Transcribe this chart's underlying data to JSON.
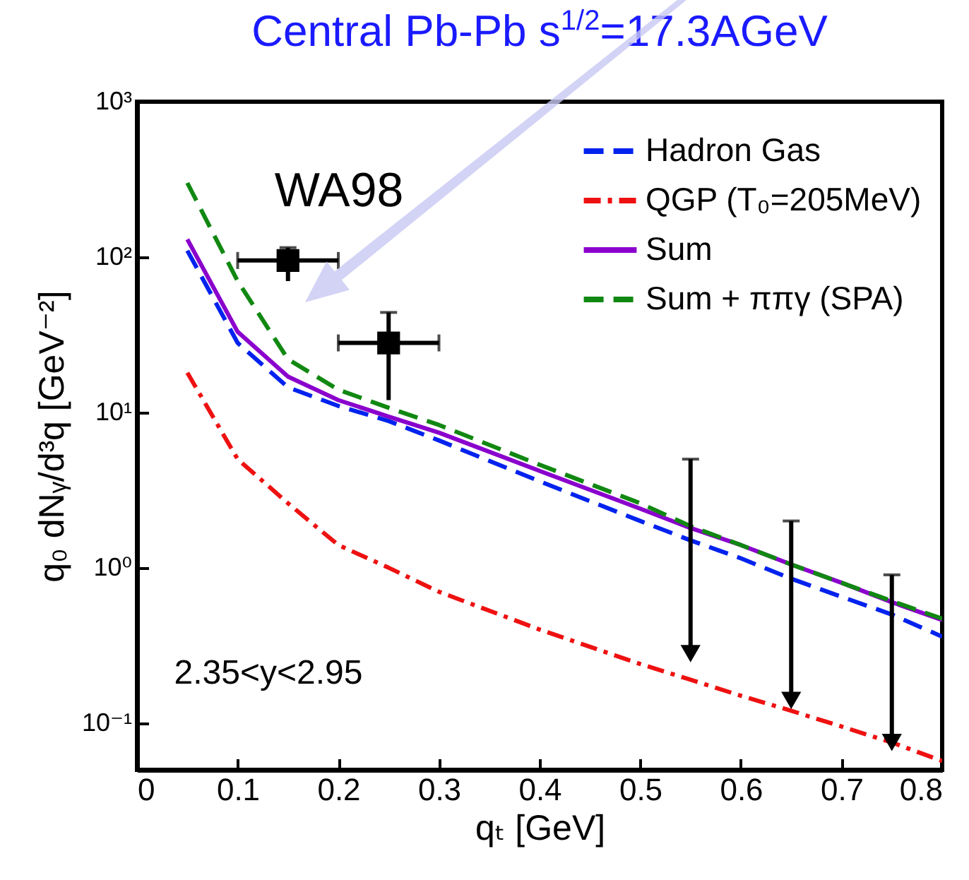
{
  "chart_data": {
    "type": "line",
    "title": "Central Pb-Pb  s$^{1/2}$=17.3AGeV",
    "xlabel": "qₜ [GeV]",
    "ylabel": "q₀ dNᵧ/d³q  [GeV⁻²]",
    "annotations": [
      "WA98",
      "2.35<y<2.95"
    ],
    "x": [
      0.05,
      0.1,
      0.15,
      0.2,
      0.25,
      0.3,
      0.4,
      0.5,
      0.55,
      0.6,
      0.65,
      0.7,
      0.75,
      0.8
    ],
    "series": [
      {
        "name": "Hadron Gas",
        "color": "#0022ee",
        "line_style": "dashed",
        "values": [
          110,
          28,
          14.5,
          11,
          8.8,
          6.6,
          3.6,
          2.0,
          1.5,
          1.15,
          0.85,
          0.65,
          0.5,
          0.36
        ]
      },
      {
        "name": "QGP (T₀=205MeV)",
        "color": "#ee1111",
        "line_style": "dashdot",
        "values": [
          18,
          5,
          2.6,
          1.4,
          1.0,
          0.7,
          0.4,
          0.24,
          0.19,
          0.15,
          0.12,
          0.095,
          0.075,
          0.057
        ]
      },
      {
        "name": "Sum",
        "color": "#8a00cc",
        "line_style": "solid",
        "values": [
          130,
          33,
          17,
          12,
          9.4,
          7.4,
          4.2,
          2.4,
          1.8,
          1.4,
          1.05,
          0.8,
          0.6,
          0.46
        ]
      },
      {
        "name": "Sum + ππγ (SPA)",
        "color": "#118811",
        "line_style": "dashed",
        "values": [
          300,
          70,
          22,
          14,
          10.7,
          8.3,
          4.6,
          2.6,
          1.85,
          1.4,
          1.05,
          0.8,
          0.61,
          0.47
        ]
      },
      {
        "type": "scatter",
        "color": "#000000",
        "marker": "square",
        "x": [
          0.15,
          0.25
        ],
        "values": [
          95,
          28
        ],
        "errors": [
          [
            70,
            115
          ],
          [
            12,
            44
          ]
        ],
        "xerrors": [
          0.05,
          0.05
        ]
      },
      {
        "type": "scatter",
        "color": "#000000",
        "marker": "triangle",
        "x": [
          0.55,
          0.65,
          0.75
        ],
        "values": [
          0.28,
          0.14,
          0.075
        ],
        "errors": [
          [
            0.28,
            5
          ],
          [
            0.14,
            2
          ],
          [
            0.075,
            0.9
          ]
        ]
      }
    ],
    "xlim": [
      0,
      0.8
    ],
    "xticks": [
      0,
      0.1,
      0.2,
      0.3,
      0.4,
      0.5,
      0.6,
      0.7,
      0.8
    ],
    "ylim": [
      0.05,
      1000
    ],
    "log": true,
    "yticks": [
      {
        "value": 0.1,
        "label": "10⁻¹"
      },
      {
        "value": 1,
        "label": "10⁰"
      },
      {
        "value": 10,
        "label": "10¹"
      },
      {
        "value": 100,
        "label": "10²"
      },
      {
        "value": 1000,
        "label": "10³"
      }
    ],
    "legend": "top right",
    "grid": false
  }
}
